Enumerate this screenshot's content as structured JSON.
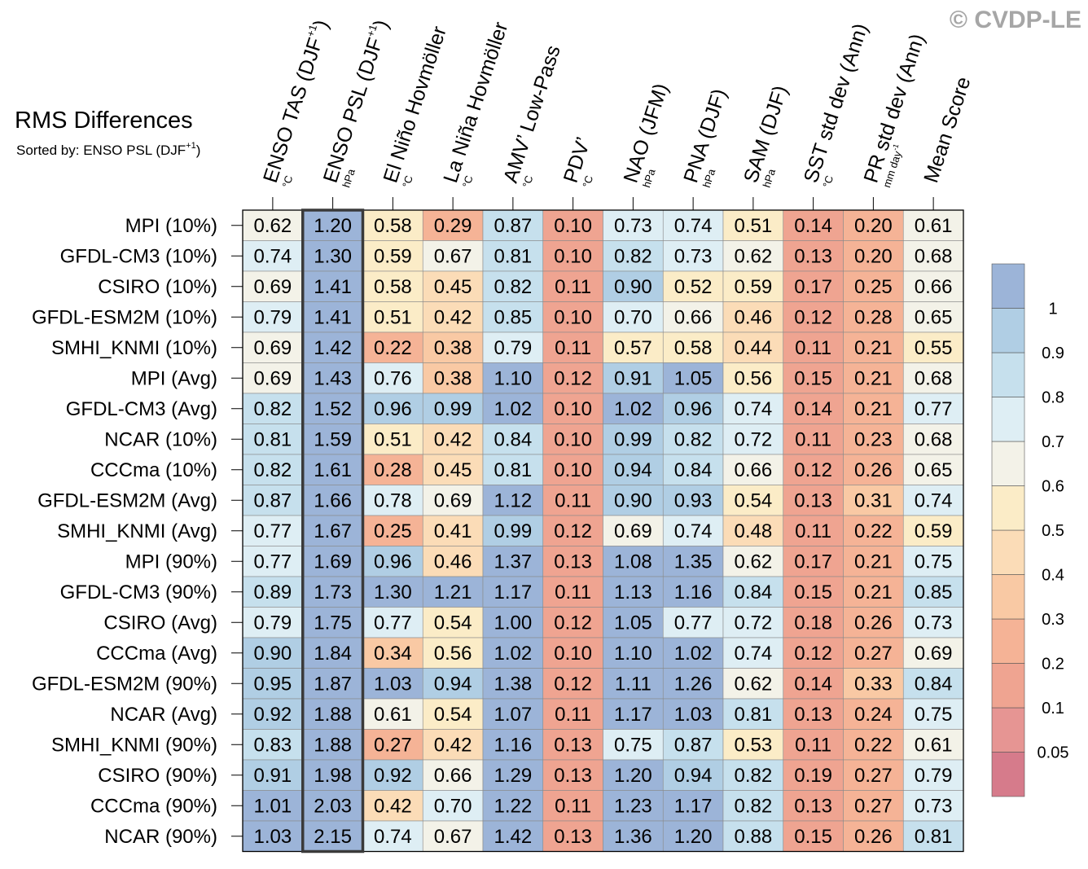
{
  "copyright": "© CVDP-LE",
  "chart_data": {
    "type": "heatmap",
    "title": "RMS Differences",
    "subtitle_prefix": "Sorted by: ENSO PSL (DJF",
    "subtitle_sup": "+1",
    "subtitle_suffix": ")",
    "sorted_column_index": 1,
    "columns": [
      {
        "name": "ENSO TAS (DJF",
        "sup": "+1",
        "tail": ")",
        "unit": "°C"
      },
      {
        "name": "ENSO PSL (DJF",
        "sup": "+1",
        "tail": ")",
        "unit": "hPa"
      },
      {
        "name": "El Niño Hovmöller",
        "sup": "",
        "tail": "",
        "unit": "°C"
      },
      {
        "name": "La Niña Hovmöller",
        "sup": "",
        "tail": "",
        "unit": "°C"
      },
      {
        "name": "AMV’ Low-Pass",
        "sup": "",
        "tail": "",
        "unit": "°C"
      },
      {
        "name": "PDV’",
        "sup": "",
        "tail": "",
        "unit": "°C"
      },
      {
        "name": "NAO (JFM)",
        "sup": "",
        "tail": "",
        "unit": "hPa"
      },
      {
        "name": "PNA (DJF)",
        "sup": "",
        "tail": "",
        "unit": "hPa"
      },
      {
        "name": "SAM (DJF)",
        "sup": "",
        "tail": "",
        "unit": "hPa"
      },
      {
        "name": "SST std dev (Ann)",
        "sup": "",
        "tail": "",
        "unit": "°C"
      },
      {
        "name": "PR std dev (Ann)",
        "sup": "",
        "tail": "",
        "unit": "mm day",
        "unit_sup": "-1"
      },
      {
        "name": "Mean Score",
        "sup": "",
        "tail": "",
        "unit": ""
      }
    ],
    "rows": [
      "MPI (10%)",
      "GFDL-CM3 (10%)",
      "CSIRO (10%)",
      "GFDL-ESM2M (10%)",
      "SMHI_KNMI (10%)",
      "MPI (Avg)",
      "GFDL-CM3 (Avg)",
      "NCAR (10%)",
      "CCCma (10%)",
      "GFDL-ESM2M (Avg)",
      "SMHI_KNMI (Avg)",
      "MPI (90%)",
      "GFDL-CM3 (90%)",
      "CSIRO (Avg)",
      "CCCma (Avg)",
      "GFDL-ESM2M (90%)",
      "NCAR (Avg)",
      "SMHI_KNMI (90%)",
      "CSIRO (90%)",
      "CCCma (90%)",
      "NCAR (90%)"
    ],
    "values": [
      [
        "0.62",
        "1.20",
        "0.58",
        "0.29",
        "0.87",
        "0.10",
        "0.73",
        "0.74",
        "0.51",
        "0.14",
        "0.20",
        "0.61"
      ],
      [
        "0.74",
        "1.30",
        "0.59",
        "0.67",
        "0.81",
        "0.10",
        "0.82",
        "0.73",
        "0.62",
        "0.13",
        "0.20",
        "0.68"
      ],
      [
        "0.69",
        "1.41",
        "0.58",
        "0.45",
        "0.82",
        "0.11",
        "0.90",
        "0.52",
        "0.59",
        "0.17",
        "0.25",
        "0.66"
      ],
      [
        "0.79",
        "1.41",
        "0.51",
        "0.42",
        "0.85",
        "0.10",
        "0.70",
        "0.66",
        "0.46",
        "0.12",
        "0.28",
        "0.65"
      ],
      [
        "0.69",
        "1.42",
        "0.22",
        "0.38",
        "0.79",
        "0.11",
        "0.57",
        "0.58",
        "0.44",
        "0.11",
        "0.21",
        "0.55"
      ],
      [
        "0.69",
        "1.43",
        "0.76",
        "0.38",
        "1.10",
        "0.12",
        "0.91",
        "1.05",
        "0.56",
        "0.15",
        "0.21",
        "0.68"
      ],
      [
        "0.82",
        "1.52",
        "0.96",
        "0.99",
        "1.02",
        "0.10",
        "1.02",
        "0.96",
        "0.74",
        "0.14",
        "0.21",
        "0.77"
      ],
      [
        "0.81",
        "1.59",
        "0.51",
        "0.42",
        "0.84",
        "0.10",
        "0.99",
        "0.82",
        "0.72",
        "0.11",
        "0.23",
        "0.68"
      ],
      [
        "0.82",
        "1.61",
        "0.28",
        "0.45",
        "0.81",
        "0.10",
        "0.94",
        "0.84",
        "0.66",
        "0.12",
        "0.26",
        "0.65"
      ],
      [
        "0.87",
        "1.66",
        "0.78",
        "0.69",
        "1.12",
        "0.11",
        "0.90",
        "0.93",
        "0.54",
        "0.13",
        "0.31",
        "0.74"
      ],
      [
        "0.77",
        "1.67",
        "0.25",
        "0.41",
        "0.99",
        "0.12",
        "0.69",
        "0.74",
        "0.48",
        "0.11",
        "0.22",
        "0.59"
      ],
      [
        "0.77",
        "1.69",
        "0.96",
        "0.46",
        "1.37",
        "0.13",
        "1.08",
        "1.35",
        "0.62",
        "0.17",
        "0.21",
        "0.75"
      ],
      [
        "0.89",
        "1.73",
        "1.30",
        "1.21",
        "1.17",
        "0.11",
        "1.13",
        "1.16",
        "0.84",
        "0.15",
        "0.21",
        "0.85"
      ],
      [
        "0.79",
        "1.75",
        "0.77",
        "0.54",
        "1.00",
        "0.12",
        "1.05",
        "0.77",
        "0.72",
        "0.18",
        "0.26",
        "0.73"
      ],
      [
        "0.90",
        "1.84",
        "0.34",
        "0.56",
        "1.02",
        "0.10",
        "1.10",
        "1.02",
        "0.74",
        "0.12",
        "0.27",
        "0.69"
      ],
      [
        "0.95",
        "1.87",
        "1.03",
        "0.94",
        "1.38",
        "0.12",
        "1.11",
        "1.26",
        "0.62",
        "0.14",
        "0.33",
        "0.84"
      ],
      [
        "0.92",
        "1.88",
        "0.61",
        "0.54",
        "1.07",
        "0.11",
        "1.17",
        "1.03",
        "0.81",
        "0.13",
        "0.24",
        "0.75"
      ],
      [
        "0.83",
        "1.88",
        "0.27",
        "0.42",
        "1.16",
        "0.13",
        "0.75",
        "0.87",
        "0.53",
        "0.11",
        "0.22",
        "0.61"
      ],
      [
        "0.91",
        "1.98",
        "0.92",
        "0.66",
        "1.29",
        "0.13",
        "1.20",
        "0.94",
        "0.82",
        "0.19",
        "0.27",
        "0.79"
      ],
      [
        "1.01",
        "2.03",
        "0.42",
        "0.70",
        "1.22",
        "0.11",
        "1.23",
        "1.17",
        "0.82",
        "0.13",
        "0.27",
        "0.73"
      ],
      [
        "1.03",
        "2.15",
        "0.74",
        "0.67",
        "1.42",
        "0.13",
        "1.36",
        "1.20",
        "0.88",
        "0.15",
        "0.26",
        "0.81"
      ]
    ],
    "colorbar": {
      "levels": [
        "0.05",
        "0.1",
        "0.2",
        "0.3",
        "0.4",
        "0.5",
        "0.6",
        "0.7",
        "0.8",
        "0.9",
        "1"
      ],
      "colors": [
        "#d67b8b",
        "#e69593",
        "#efa491",
        "#f5b396",
        "#f9c9a4",
        "#fbdcb7",
        "#fbecc7",
        "#f3f2e8",
        "#deeef4",
        "#c6e0ed",
        "#b0cee4",
        "#9cb4d8"
      ]
    }
  }
}
